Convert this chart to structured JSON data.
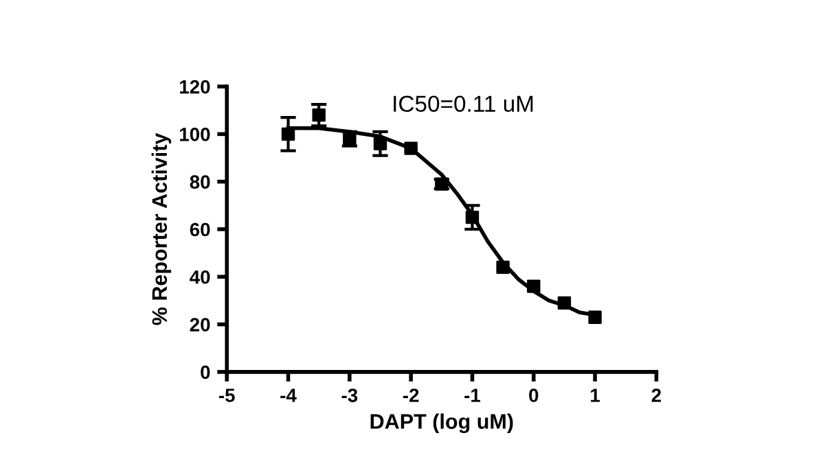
{
  "chart_data": {
    "type": "scatter",
    "xlabel": "DAPT (log uM)",
    "ylabel": "% Reporter Activity",
    "annotations": [
      "IC50=0.11 uM"
    ],
    "xlim": [
      -5,
      2
    ],
    "xticks": [
      -5,
      -4,
      -3,
      -2,
      -1,
      0,
      1,
      2
    ],
    "ylim": [
      0,
      120
    ],
    "yticks": [
      0,
      20,
      40,
      60,
      80,
      100,
      120
    ],
    "grid": false,
    "series": [
      {
        "color": "#000000",
        "marker": "square",
        "x": [
          -4,
          -3.5,
          -3,
          -2.5,
          -2,
          -1.5,
          -1,
          -0.5,
          0,
          0.5,
          1
        ],
        "values": [
          100,
          108,
          98,
          96,
          94,
          79,
          65,
          44,
          36,
          29,
          23
        ],
        "errors": [
          7,
          4.5,
          3,
          5,
          null,
          2,
          5,
          null,
          null,
          null,
          null
        ]
      },
      {
        "type": "line",
        "color": "#000000",
        "marker": "none",
        "line_style": "solid",
        "x": [
          -4,
          -3.5,
          -3,
          -2.5,
          -2,
          -1.5,
          -1.25,
          -1,
          -0.75,
          -0.5,
          -0.25,
          0,
          0.25,
          0.5,
          0.75,
          1
        ],
        "values": [
          102.5,
          102.5,
          101,
          99,
          94,
          83,
          75,
          66,
          55,
          46,
          39,
          34,
          30,
          28,
          25,
          24
        ]
      }
    ]
  }
}
